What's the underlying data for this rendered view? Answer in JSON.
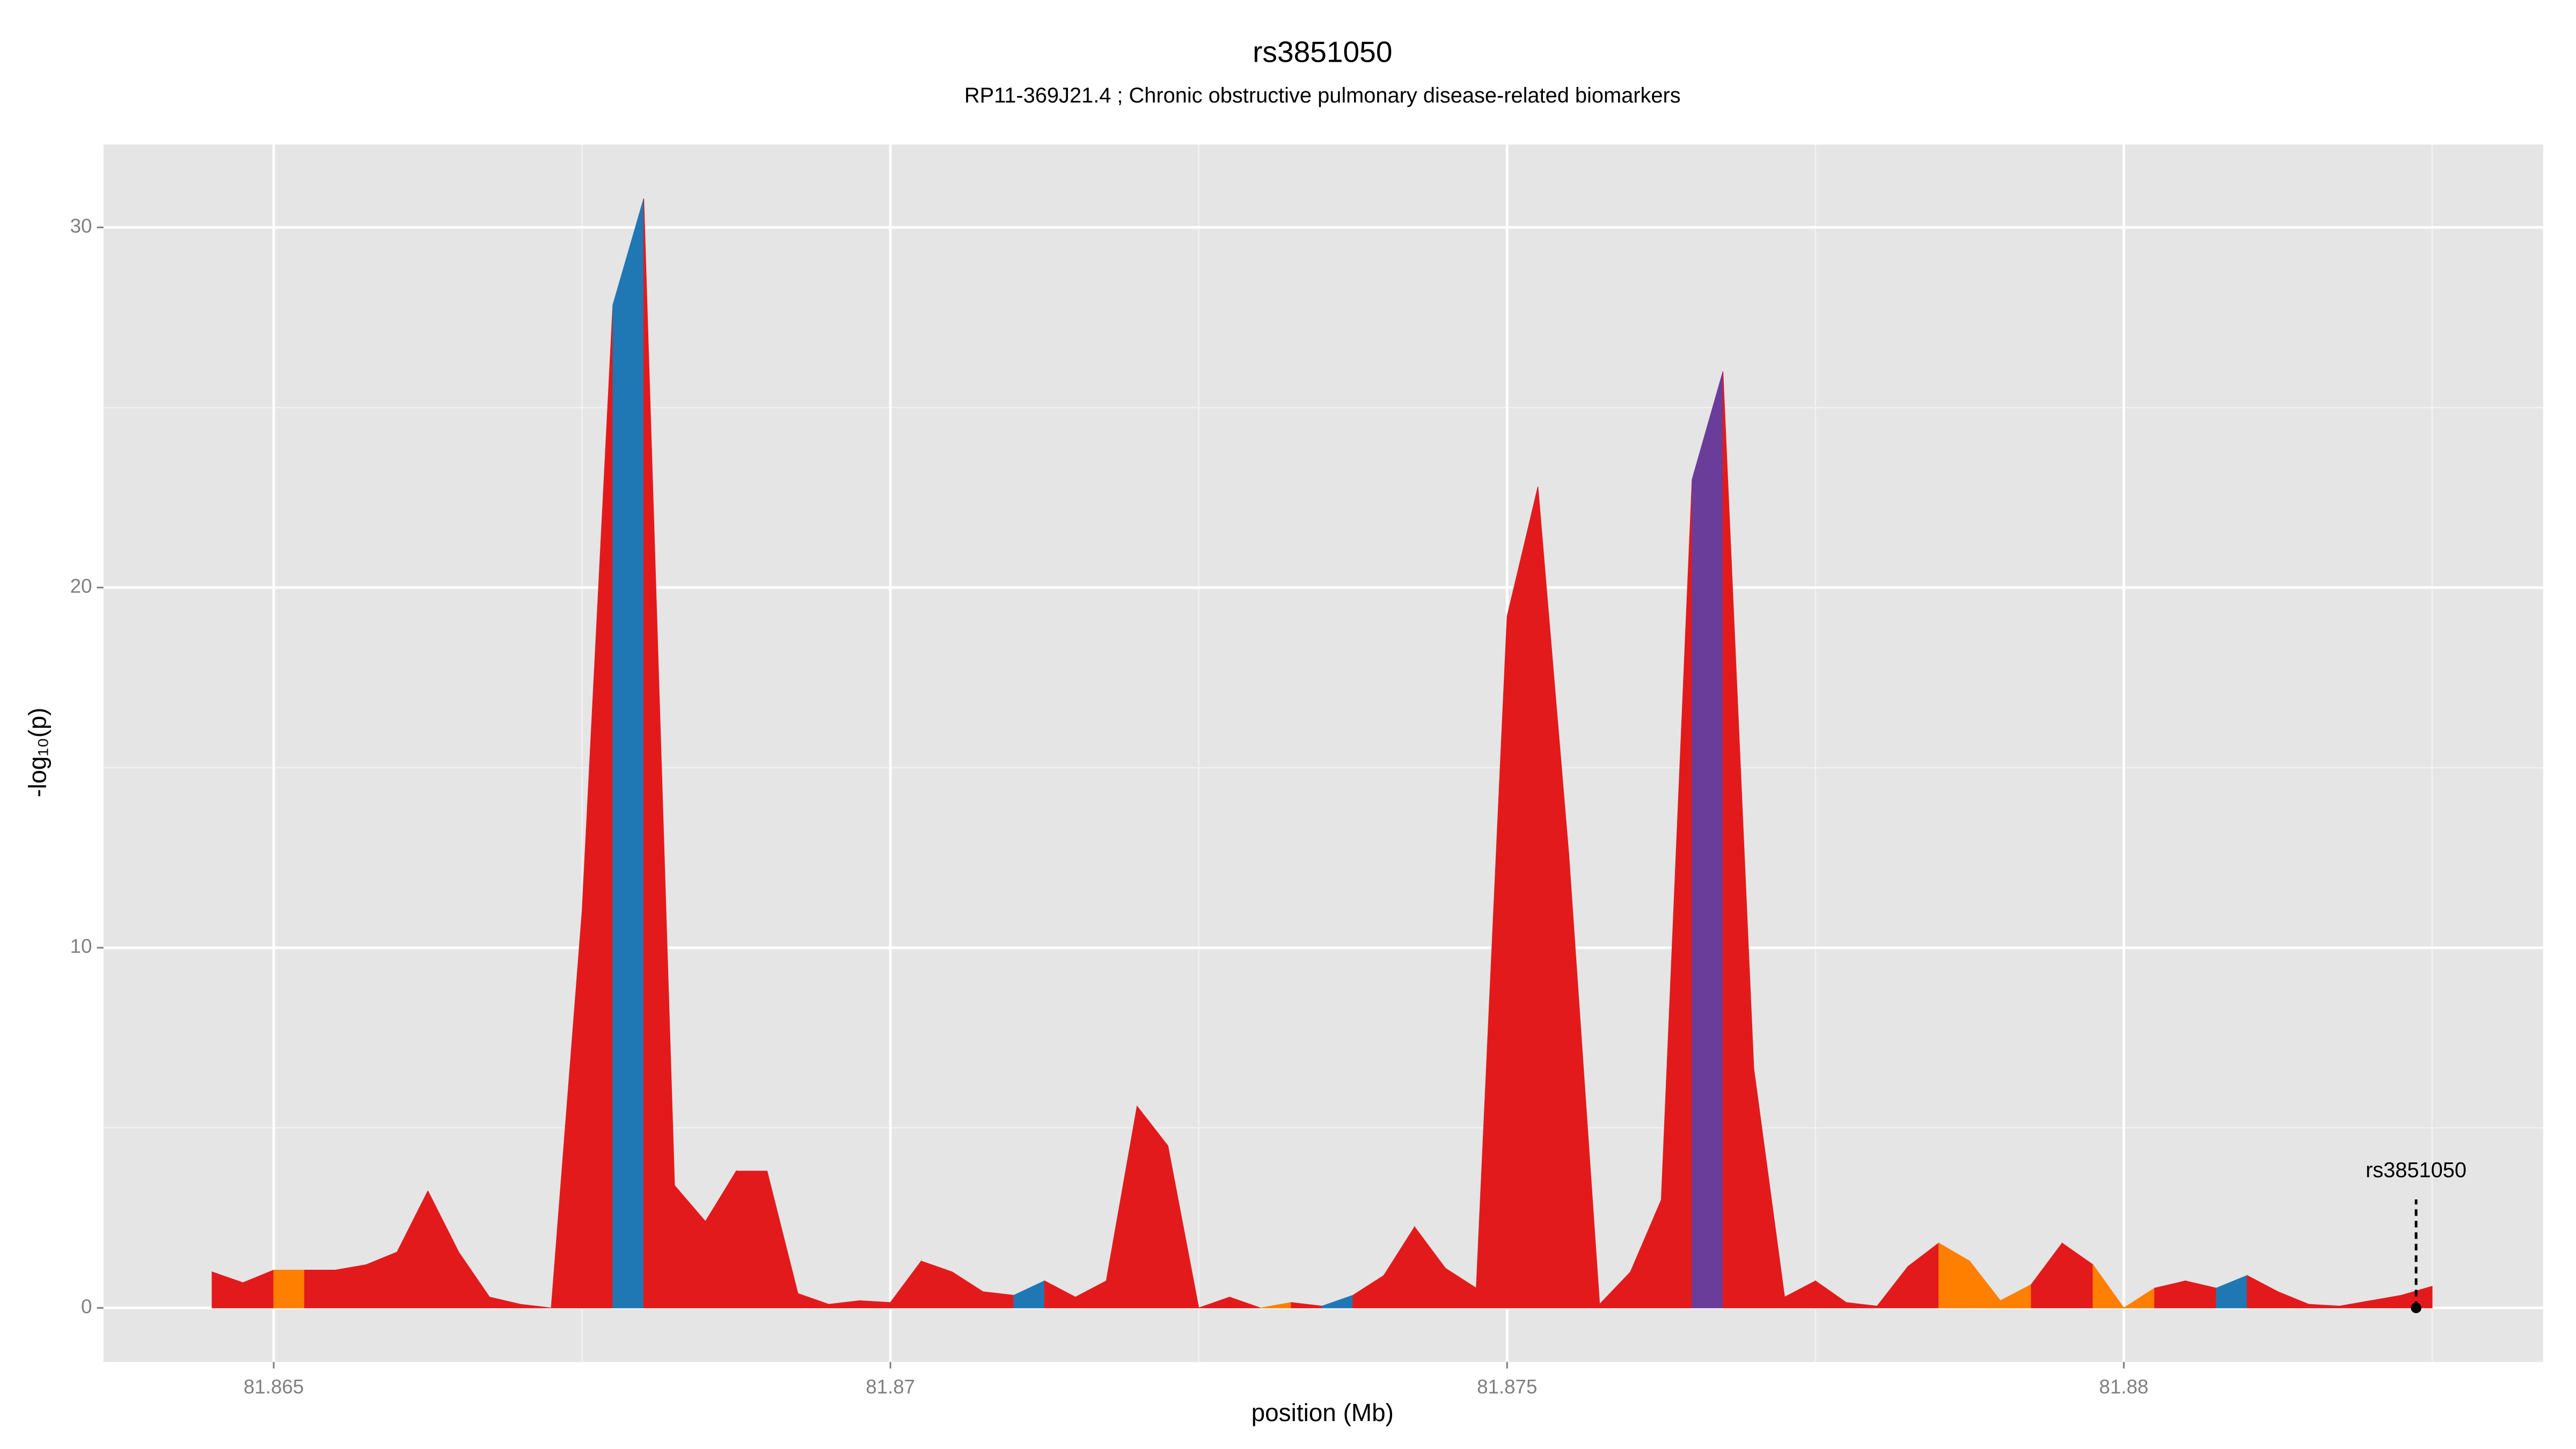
{
  "chart_data": {
    "type": "area",
    "title": "rs3851050",
    "subtitle": "RP11-369J21.4 ; Chronic obstructive pulmonary disease-related biomarkers",
    "xlabel": "position (Mb)",
    "ylabel": "-log₁₀(p)",
    "x": [
      81.8645,
      81.86475,
      81.865,
      81.86525,
      81.8655,
      81.86575,
      81.866,
      81.86625,
      81.8665,
      81.86675,
      81.867,
      81.86725,
      81.8675,
      81.86775,
      81.868,
      81.86825,
      81.8685,
      81.86875,
      81.869,
      81.86925,
      81.8695,
      81.86975,
      81.87,
      81.87025,
      81.8705,
      81.87075,
      81.871,
      81.87125,
      81.8715,
      81.87175,
      81.872,
      81.87225,
      81.8725,
      81.87275,
      81.873,
      81.87325,
      81.8735,
      81.87375,
      81.874,
      81.87425,
      81.8745,
      81.87475,
      81.875,
      81.87525,
      81.8755,
      81.87575,
      81.876,
      81.87625,
      81.8765,
      81.87675,
      81.877,
      81.87725,
      81.8775,
      81.87775,
      81.878,
      81.87825,
      81.8785,
      81.87875,
      81.879,
      81.87925,
      81.8795,
      81.87975,
      81.88,
      81.88025,
      81.8805,
      81.88075,
      81.881,
      81.88125,
      81.8815,
      81.88175,
      81.882,
      81.88225,
      81.8825
    ],
    "series": [
      {
        "values": [
          1.0,
          0.7,
          1.05,
          1.05,
          1.05,
          1.2,
          1.55,
          3.25,
          1.55,
          0.3,
          0.1,
          0.0,
          11.0,
          27.85,
          30.8,
          3.4,
          2.4,
          3.8,
          3.8,
          0.4,
          0.1,
          0.2,
          0.15,
          1.3,
          1.0,
          0.45,
          0.35,
          0.75,
          0.3,
          0.75,
          5.6,
          4.5,
          0.0,
          0.3,
          0.0,
          0.15,
          0.05,
          0.35,
          0.9,
          2.25,
          1.1,
          0.55,
          19.2,
          22.8,
          12.6,
          0.1,
          1.0,
          3.0,
          23.0,
          26.0,
          6.65,
          0.3,
          0.75,
          0.15,
          0.05,
          1.15,
          1.8,
          1.3,
          0.2,
          0.65,
          1.8,
          1.2,
          0.0,
          0.55,
          0.75,
          0.55,
          0.9,
          0.45,
          0.1,
          0.05,
          0.2,
          0.35,
          0.6
        ],
        "colors": [
          "#e31a1c",
          "#e31a1c",
          "#ff7f00",
          "#e31a1c",
          "#e31a1c",
          "#e31a1c",
          "#e31a1c",
          "#e31a1c",
          "#e31a1c",
          "#e31a1c",
          "#e31a1c",
          "#e31a1c",
          "#e31a1c",
          "#1f78b4",
          "#e31a1c",
          "#e31a1c",
          "#e31a1c",
          "#e31a1c",
          "#e31a1c",
          "#e31a1c",
          "#e31a1c",
          "#e31a1c",
          "#e31a1c",
          "#e31a1c",
          "#e31a1c",
          "#e31a1c",
          "#1f78b4",
          "#e31a1c",
          "#e31a1c",
          "#e31a1c",
          "#e31a1c",
          "#e31a1c",
          "#e31a1c",
          "#e31a1c",
          "#ff7f00",
          "#e31a1c",
          "#1f78b4",
          "#e31a1c",
          "#e31a1c",
          "#e31a1c",
          "#e31a1c",
          "#e31a1c",
          "#e31a1c",
          "#e31a1c",
          "#e31a1c",
          "#e31a1c",
          "#e31a1c",
          "#e31a1c",
          "#6a3d9a",
          "#e31a1c",
          "#e31a1c",
          "#e31a1c",
          "#e31a1c",
          "#e31a1c",
          "#e31a1c",
          "#e31a1c",
          "#ff7f00",
          "#ff7f00",
          "#ff7f00",
          "#e31a1c",
          "#e31a1c",
          "#ff7f00",
          "#ff7f00",
          "#e31a1c",
          "#e31a1c",
          "#1f78b4",
          "#e31a1c",
          "#e31a1c",
          "#e31a1c",
          "#e31a1c",
          "#e31a1c",
          "#e31a1c",
          "#e31a1c"
        ]
      }
    ],
    "annotation": {
      "text": "rs3851050",
      "x": 81.88237,
      "y": 0
    },
    "xlim": [
      81.86362,
      81.8834
    ],
    "ylim": [
      -1.5,
      32.3
    ],
    "xticks": [
      81.865,
      81.87,
      81.875,
      81.88
    ],
    "yticks": [
      0,
      10,
      20,
      30
    ],
    "x_minor_ticks": [
      81.8675,
      81.8725,
      81.8775,
      81.8825
    ],
    "y_minor_ticks": [
      5,
      15,
      25
    ],
    "grid": true
  }
}
